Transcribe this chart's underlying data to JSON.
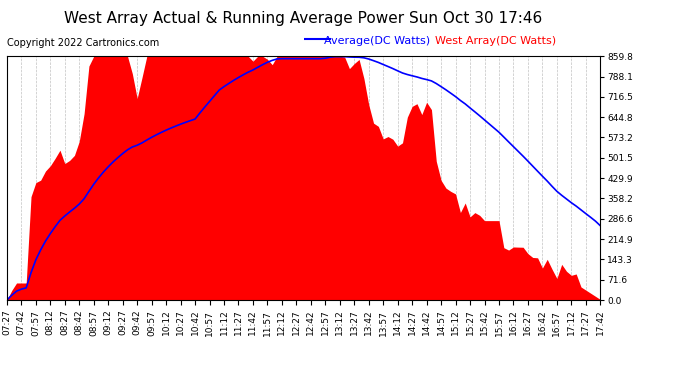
{
  "title": "West Array Actual & Running Average Power Sun Oct 30 17:46",
  "copyright": "Copyright 2022 Cartronics.com",
  "legend_average": "Average(DC Watts)",
  "legend_west": "West Array(DC Watts)",
  "y_ticks": [
    0.0,
    71.6,
    143.3,
    214.9,
    286.6,
    358.2,
    429.9,
    501.5,
    573.2,
    644.8,
    716.5,
    788.1,
    859.8
  ],
  "y_max": 859.8,
  "y_min": 0.0,
  "bg_color": "#ffffff",
  "plot_bg_color": "#ffffff",
  "grid_color": "#bbbbbb",
  "bar_color": "#ff0000",
  "avg_line_color": "#0000ff",
  "title_fontsize": 11,
  "tick_fontsize": 6.5,
  "copyright_fontsize": 7,
  "legend_fontsize": 8
}
